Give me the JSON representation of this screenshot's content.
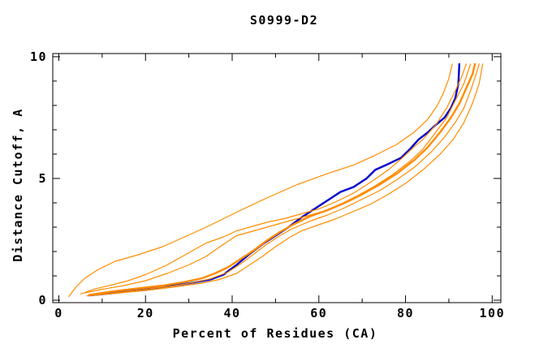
{
  "title": "S0999-D2",
  "colors": {
    "background": "#ffffff",
    "axis": "#000000",
    "highlighted_model": "#0000cd",
    "other_models": "#ff8c00"
  },
  "chart_data": {
    "type": "line",
    "title": "S0999-D2",
    "xlabel": "Percent of Residues (CA)",
    "ylabel": "Distance Cutoff, A",
    "xlim": [
      -1.4,
      102
    ],
    "ylim": [
      -0.1,
      10.13
    ],
    "x_major_ticks": [
      0,
      20,
      40,
      60,
      80,
      100
    ],
    "x_minor_ticks": [
      10,
      30,
      50,
      70,
      90
    ],
    "y_major_ticks": [
      0,
      5,
      10
    ],
    "y_minor_ticks": [
      1,
      2,
      3,
      4,
      6,
      7,
      8,
      9
    ],
    "grid": false,
    "legend": "none",
    "series": [
      {
        "name": "model-highlighted-blue",
        "color": "#0000cd",
        "width": 2.4,
        "points": [
          [
            7,
            0.2
          ],
          [
            12,
            0.28
          ],
          [
            17,
            0.38
          ],
          [
            22,
            0.5
          ],
          [
            27,
            0.62
          ],
          [
            31,
            0.72
          ],
          [
            35,
            0.85
          ],
          [
            38,
            1.05
          ],
          [
            41,
            1.45
          ],
          [
            44,
            1.9
          ],
          [
            47,
            2.3
          ],
          [
            50,
            2.65
          ],
          [
            53,
            3.0
          ],
          [
            56,
            3.4
          ],
          [
            59,
            3.75
          ],
          [
            62,
            4.1
          ],
          [
            65,
            4.45
          ],
          [
            68,
            4.65
          ],
          [
            71,
            5.0
          ],
          [
            73,
            5.35
          ],
          [
            75.5,
            5.55
          ],
          [
            79,
            5.85
          ],
          [
            81,
            6.2
          ],
          [
            83,
            6.6
          ],
          [
            85.2,
            6.9
          ],
          [
            87,
            7.2
          ],
          [
            89,
            7.5
          ],
          [
            90.5,
            7.9
          ],
          [
            91.5,
            8.3
          ],
          [
            92.2,
            8.9
          ],
          [
            92.4,
            9.7
          ]
        ]
      },
      {
        "name": "model-orange-outlier",
        "color": "#ff8c00",
        "width": 1.2,
        "points": [
          [
            2.3,
            0.15
          ],
          [
            4,
            0.55
          ],
          [
            6,
            0.9
          ],
          [
            9,
            1.25
          ],
          [
            13,
            1.6
          ],
          [
            18,
            1.85
          ],
          [
            24,
            2.2
          ],
          [
            29,
            2.6
          ],
          [
            34,
            3.0
          ],
          [
            42,
            3.7
          ],
          [
            48,
            4.2
          ],
          [
            55,
            4.75
          ],
          [
            62,
            5.2
          ],
          [
            68,
            5.55
          ],
          [
            73,
            5.95
          ],
          [
            78,
            6.4
          ],
          [
            82,
            6.9
          ],
          [
            85,
            7.4
          ],
          [
            87,
            7.9
          ],
          [
            88.5,
            8.4
          ],
          [
            90,
            9.1
          ],
          [
            90.8,
            9.7
          ]
        ]
      },
      {
        "name": "model-orange-2",
        "color": "#ff8c00",
        "width": 1.2,
        "points": [
          [
            5,
            0.25
          ],
          [
            8,
            0.45
          ],
          [
            12,
            0.62
          ],
          [
            16,
            0.8
          ],
          [
            20,
            1.05
          ],
          [
            25,
            1.45
          ],
          [
            29,
            1.85
          ],
          [
            31,
            2.05
          ],
          [
            34,
            2.35
          ],
          [
            38,
            2.6
          ],
          [
            41,
            2.85
          ],
          [
            44,
            3.0
          ],
          [
            48,
            3.2
          ],
          [
            52,
            3.35
          ],
          [
            56,
            3.55
          ],
          [
            60,
            3.75
          ],
          [
            64,
            4.05
          ],
          [
            68,
            4.4
          ],
          [
            72,
            4.85
          ],
          [
            76,
            5.35
          ],
          [
            79,
            5.8
          ],
          [
            82,
            6.3
          ],
          [
            84,
            6.6
          ],
          [
            87,
            7.2
          ],
          [
            89.5,
            7.9
          ],
          [
            91.5,
            8.6
          ],
          [
            93,
            9.2
          ],
          [
            94,
            9.7
          ]
        ]
      },
      {
        "name": "model-orange-3",
        "color": "#ff8c00",
        "width": 1.2,
        "points": [
          [
            6,
            0.3
          ],
          [
            10,
            0.45
          ],
          [
            15,
            0.6
          ],
          [
            20,
            0.8
          ],
          [
            25,
            1.1
          ],
          [
            30,
            1.45
          ],
          [
            34,
            1.8
          ],
          [
            38,
            2.3
          ],
          [
            41,
            2.65
          ],
          [
            45,
            2.85
          ],
          [
            49,
            3.05
          ],
          [
            53,
            3.25
          ],
          [
            57,
            3.45
          ],
          [
            61,
            3.65
          ],
          [
            65,
            3.95
          ],
          [
            69,
            4.3
          ],
          [
            73,
            4.7
          ],
          [
            77,
            5.15
          ],
          [
            81,
            5.7
          ],
          [
            84,
            6.2
          ],
          [
            87,
            6.9
          ],
          [
            89.5,
            7.5
          ],
          [
            91.5,
            8.2
          ],
          [
            93.5,
            8.9
          ],
          [
            95,
            9.7
          ]
        ]
      },
      {
        "name": "model-orange-4-thick",
        "color": "#ff8c00",
        "width": 2.4,
        "points": [
          [
            7,
            0.22
          ],
          [
            12,
            0.35
          ],
          [
            18,
            0.48
          ],
          [
            24,
            0.6
          ],
          [
            29,
            0.75
          ],
          [
            33,
            0.9
          ],
          [
            36,
            1.1
          ],
          [
            39,
            1.35
          ],
          [
            42,
            1.7
          ],
          [
            45,
            2.05
          ],
          [
            48,
            2.45
          ],
          [
            51,
            2.8
          ],
          [
            54,
            3.1
          ],
          [
            58,
            3.45
          ],
          [
            62,
            3.7
          ],
          [
            66,
            4.0
          ],
          [
            70,
            4.35
          ],
          [
            74,
            4.75
          ],
          [
            78,
            5.2
          ],
          [
            82,
            5.75
          ],
          [
            85,
            6.25
          ],
          [
            88,
            6.9
          ],
          [
            90.5,
            7.5
          ],
          [
            92.5,
            8.1
          ],
          [
            94,
            8.7
          ],
          [
            95.5,
            9.3
          ],
          [
            96,
            9.7
          ]
        ]
      },
      {
        "name": "model-orange-5",
        "color": "#ff8c00",
        "width": 1.2,
        "points": [
          [
            8,
            0.2
          ],
          [
            14,
            0.32
          ],
          [
            20,
            0.45
          ],
          [
            26,
            0.58
          ],
          [
            31,
            0.72
          ],
          [
            35,
            0.88
          ],
          [
            39,
            1.15
          ],
          [
            42,
            1.5
          ],
          [
            45,
            1.9
          ],
          [
            48,
            2.3
          ],
          [
            51,
            2.65
          ],
          [
            54,
            2.95
          ],
          [
            58,
            3.25
          ],
          [
            62,
            3.5
          ],
          [
            66,
            3.8
          ],
          [
            70,
            4.15
          ],
          [
            74,
            4.5
          ],
          [
            78,
            4.95
          ],
          [
            82,
            5.45
          ],
          [
            86,
            6.1
          ],
          [
            89,
            6.7
          ],
          [
            91.5,
            7.3
          ],
          [
            93.5,
            7.9
          ],
          [
            95,
            8.6
          ],
          [
            96.3,
            9.3
          ],
          [
            97,
            9.7
          ]
        ]
      },
      {
        "name": "model-orange-6",
        "color": "#ff8c00",
        "width": 1.2,
        "points": [
          [
            6.5,
            0.18
          ],
          [
            13,
            0.28
          ],
          [
            20,
            0.4
          ],
          [
            27,
            0.55
          ],
          [
            33,
            0.7
          ],
          [
            37,
            0.85
          ],
          [
            41,
            1.1
          ],
          [
            44,
            1.45
          ],
          [
            47,
            1.8
          ],
          [
            50,
            2.2
          ],
          [
            53,
            2.55
          ],
          [
            56,
            2.85
          ],
          [
            60,
            3.1
          ],
          [
            64,
            3.35
          ],
          [
            68,
            3.65
          ],
          [
            72,
            3.95
          ],
          [
            76,
            4.35
          ],
          [
            80,
            4.8
          ],
          [
            84,
            5.35
          ],
          [
            88,
            6.0
          ],
          [
            91,
            6.6
          ],
          [
            93.5,
            7.3
          ],
          [
            95.5,
            8.1
          ],
          [
            97,
            8.9
          ],
          [
            97.8,
            9.7
          ]
        ]
      }
    ]
  }
}
